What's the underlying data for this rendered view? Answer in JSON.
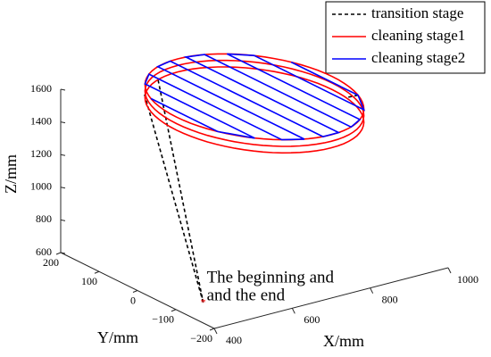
{
  "chart_data": {
    "type": "line3d",
    "xlabel": "X/mm",
    "ylabel": "Y/mm",
    "zlabel": "Z/mm",
    "xlim": [
      400,
      1000
    ],
    "ylim": [
      -200,
      200
    ],
    "zlim": [
      600,
      1600
    ],
    "xticks": [
      400,
      600,
      800,
      1000
    ],
    "yticks": [
      {
        "value": -200,
        "label": "−200"
      },
      {
        "value": -100,
        "label": "−100"
      },
      0,
      100,
      200
    ],
    "zticks": [
      600,
      800,
      1000,
      1200,
      1400,
      1600
    ],
    "annotation": [
      "The beginning and",
      "and the end"
    ],
    "start_point": {
      "x": 470,
      "y": -100,
      "z": 600,
      "color": "#ff0000"
    },
    "legend": "upper right",
    "series": [
      {
        "name": "transition stage",
        "color": "#000000",
        "dash": true,
        "x": [
          470,
          570,
          null,
          640,
          470,
          null,
          880,
          900
        ],
        "y": [
          -100,
          155,
          null,
          190,
          -100,
          null,
          -87,
          -40
        ],
        "z": [
          600,
          1520,
          null,
          1520,
          600,
          null,
          1600,
          1520
        ]
      },
      {
        "name": "cleaning stage1",
        "color": "#ff0000",
        "shape": "circle",
        "center": [
          700,
          0
        ],
        "radius": 200,
        "z": [
          1520,
          1560,
          1600
        ]
      },
      {
        "name": "cleaning stage2",
        "color": "#0000ff",
        "x": [
          520,
          520,
          560,
          560,
          600,
          600,
          640,
          640,
          680,
          680,
          720,
          720,
          760,
          760,
          800,
          800,
          840,
          840,
          880,
          880
        ],
        "y": [
          87,
          -87,
          -143,
          143,
          173,
          -173,
          -191,
          191,
          199,
          -199,
          -199,
          199,
          191,
          -191,
          -173,
          173,
          143,
          -143,
          -87,
          87
        ],
        "z": [
          1600,
          1600,
          1600,
          1600,
          1600,
          1600,
          1600,
          1600,
          1600,
          1600,
          1600,
          1600,
          1600,
          1600,
          1600,
          1600,
          1600,
          1600,
          1600,
          1600
        ]
      }
    ]
  }
}
